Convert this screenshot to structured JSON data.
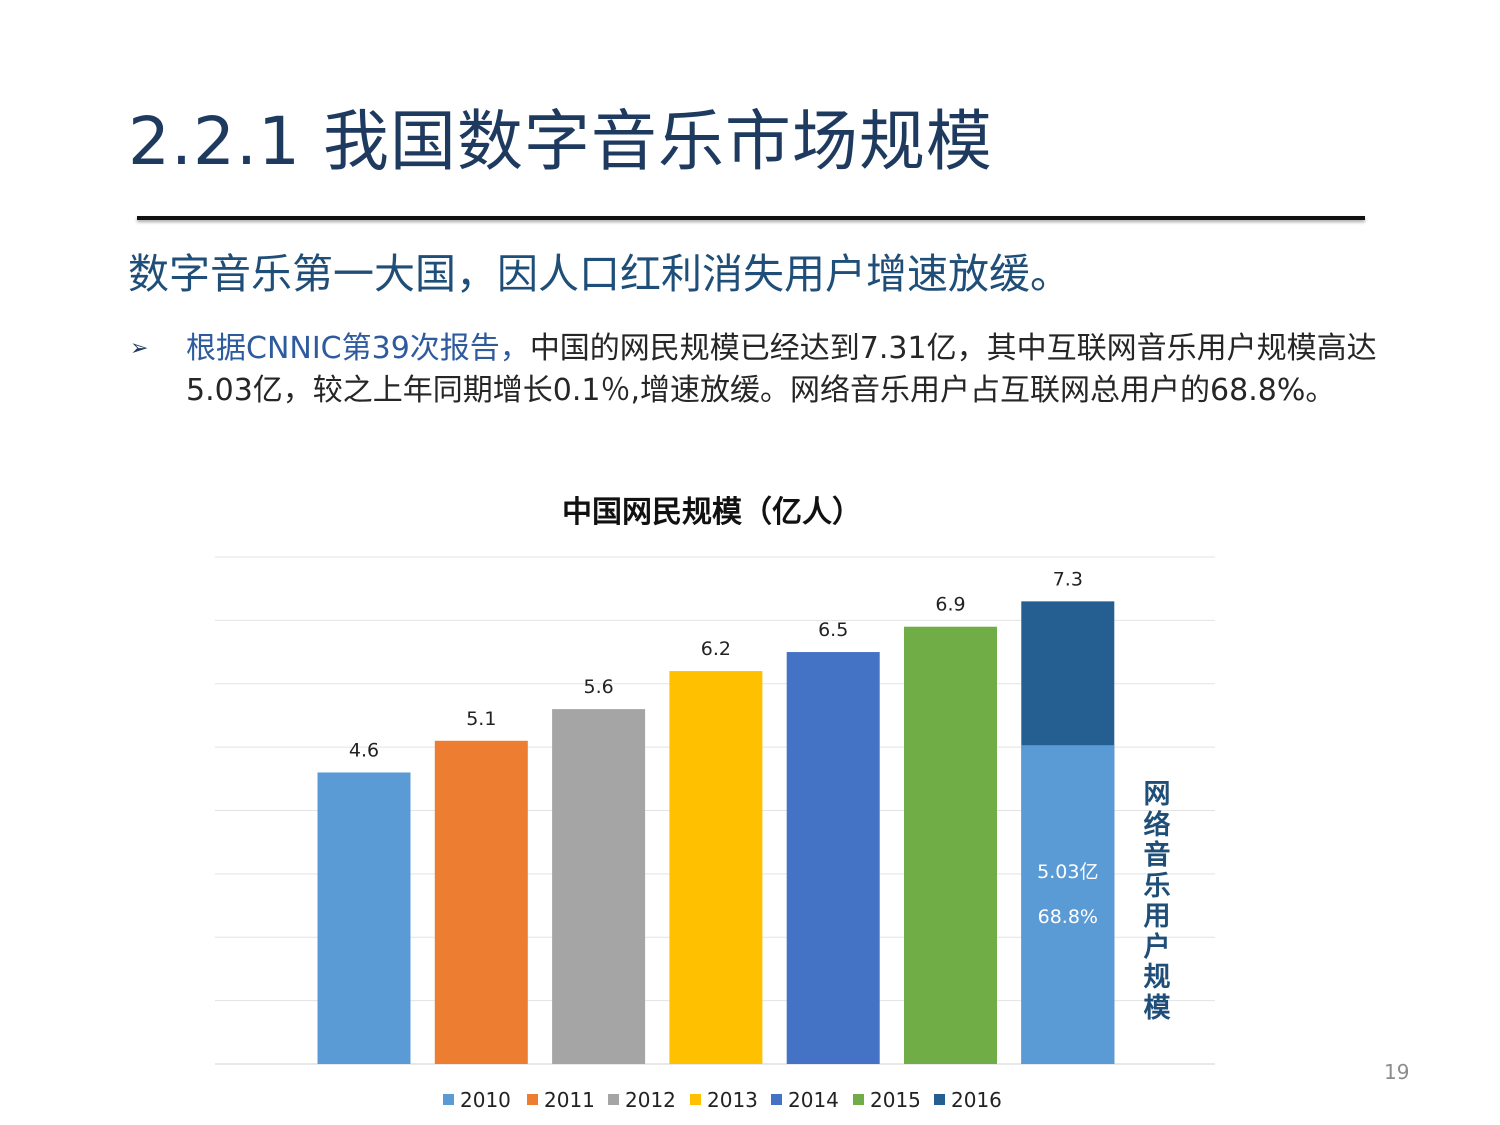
{
  "slide": {
    "title": "2.2.1 我国数字音乐市场规模",
    "subtitle": "数字音乐第一大国，因人口红利消失用户增速放缓。",
    "bullet_marker": "➢",
    "bullet_highlight": "根据CNNIC第39次报告，",
    "bullet_text": "中国的网民规模已经达到7.31亿，其中互联网音乐用户规模高达5.03亿，较之上年同期增长0.1％,增速放缓。网络音乐用户占互联网总用户的68.8%。",
    "page_number": "19"
  },
  "chart_data": {
    "type": "bar",
    "title": "中国网民规模（亿人）",
    "categories": [
      "2010",
      "2011",
      "2012",
      "2013",
      "2014",
      "2015",
      "2016"
    ],
    "values": [
      4.6,
      5.1,
      5.6,
      6.2,
      6.5,
      6.9,
      7.3
    ],
    "data_labels": [
      "4.6",
      "5.1",
      "5.6",
      "6.2",
      "6.5",
      "6.9",
      "7.3"
    ],
    "colors": [
      "#5B9BD5",
      "#ED7D31",
      "#A5A5A5",
      "#FFC000",
      "#4472C4",
      "#70AD47",
      "#255E91"
    ],
    "ylim": [
      0,
      8
    ],
    "grid": true,
    "legend": "bottom",
    "highlight_segment": {
      "category": "2016",
      "value": 5.03,
      "color": "#5B9BD5",
      "label_value": "5.03亿",
      "label_share": "68.8%"
    },
    "side_label": "网络音乐用户规模"
  }
}
